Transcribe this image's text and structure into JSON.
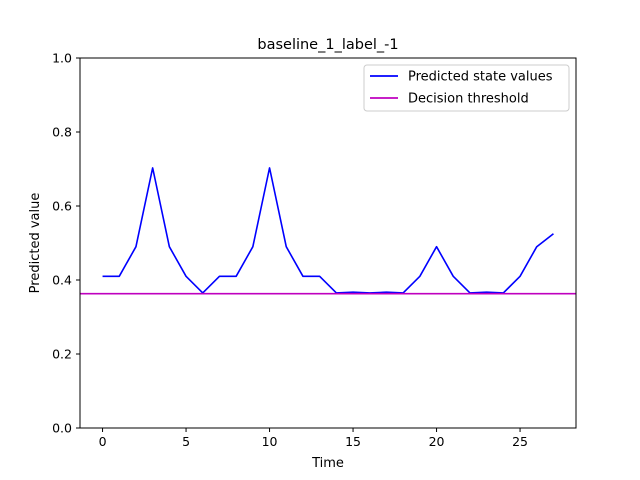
{
  "chart_data": {
    "type": "line",
    "title": "baseline_1_label_-1",
    "xlabel": "Time",
    "ylabel": "Predicted value",
    "xlim": [
      -1.35,
      28.35
    ],
    "ylim": [
      0.0,
      1.0
    ],
    "xticks": [
      0,
      5,
      10,
      15,
      20,
      25
    ],
    "yticks": [
      0.0,
      0.2,
      0.4,
      0.6,
      0.8,
      1.0
    ],
    "xtick_labels": [
      "0",
      "5",
      "10",
      "15",
      "20",
      "25"
    ],
    "ytick_labels": [
      "0.0",
      "0.2",
      "0.4",
      "0.6",
      "0.8",
      "1.0"
    ],
    "grid": false,
    "legend_position": "top-right",
    "series": [
      {
        "name": "Predicted state values",
        "color": "#0000ff",
        "x": [
          0,
          1,
          2,
          3,
          4,
          5,
          6,
          7,
          8,
          9,
          10,
          11,
          12,
          13,
          14,
          15,
          16,
          17,
          18,
          19,
          20,
          21,
          22,
          23,
          24,
          25,
          26,
          27
        ],
        "y": [
          0.41,
          0.41,
          0.49,
          0.703,
          0.49,
          0.41,
          0.365,
          0.41,
          0.41,
          0.49,
          0.703,
          0.49,
          0.41,
          0.41,
          0.365,
          0.367,
          0.365,
          0.367,
          0.365,
          0.41,
          0.49,
          0.41,
          0.365,
          0.367,
          0.365,
          0.41,
          0.49,
          0.525
        ]
      }
    ],
    "threshold": {
      "name": "Decision threshold",
      "color": "#bf00bf",
      "value": 0.363
    }
  }
}
